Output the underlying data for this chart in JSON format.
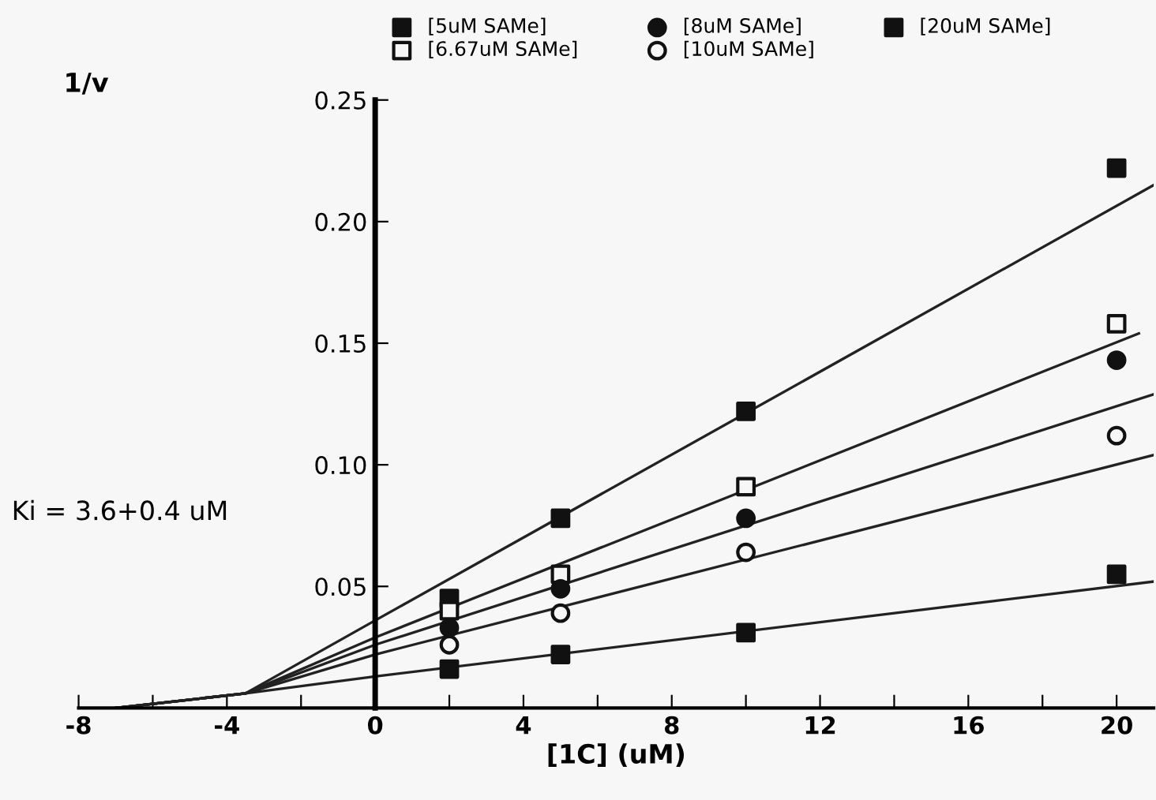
{
  "chart_data": {
    "type": "scatter",
    "xlabel": "[1C] (uM)",
    "ylabel": "1/v",
    "x": [
      2,
      5,
      10,
      20
    ],
    "series": [
      {
        "name": "[5uM SAMe]",
        "color": "#111111",
        "marker": "square",
        "values": [
          0.045,
          0.078,
          0.122,
          0.222
        ]
      },
      {
        "name": "[6.67uM SAMe]",
        "color": "#f7f7f7",
        "marker": "square",
        "values": [
          0.04,
          0.055,
          0.091,
          0.158
        ]
      },
      {
        "name": "[8uM SAMe]",
        "color": "#111111",
        "marker": "circle",
        "values": [
          0.033,
          0.049,
          0.078,
          0.143
        ]
      },
      {
        "name": "[10uM SAMe]",
        "color": "#f7f7f7",
        "marker": "circle",
        "values": [
          0.026,
          0.039,
          0.064,
          0.112
        ]
      },
      {
        "name": "[20uM SAMe]",
        "color": "#111111",
        "marker": "square",
        "values": [
          0.016,
          0.022,
          0.031,
          0.055
        ]
      },
      {
        "type": "line",
        "color": "#222222",
        "x": [
          -7,
          -3.5,
          0,
          21
        ],
        "values": [
          0,
          0.006,
          0.036,
          0.215
        ]
      },
      {
        "type": "line",
        "color": "#222222",
        "x": [
          -7,
          -3.5,
          0,
          20.6
        ],
        "values": [
          0,
          0.006,
          0.029,
          0.154
        ]
      },
      {
        "type": "line",
        "color": "#222222",
        "x": [
          -7,
          -3.5,
          0,
          21
        ],
        "values": [
          0,
          0.006,
          0.026,
          0.129
        ]
      },
      {
        "type": "line",
        "color": "#222222",
        "x": [
          -7,
          -3.5,
          0,
          21
        ],
        "values": [
          0,
          0.006,
          0.022,
          0.104
        ]
      },
      {
        "type": "line",
        "color": "#222222",
        "x": [
          -7,
          -3.5,
          0,
          21
        ],
        "values": [
          0,
          0.006,
          0.013,
          0.052
        ]
      }
    ],
    "xlim": [
      -8,
      21
    ],
    "ylim": [
      0,
      0.25
    ],
    "xticks": [
      -8,
      {
        "value": -6,
        "label": null
      },
      -4,
      {
        "value": -2,
        "label": null
      },
      0,
      {
        "value": 2,
        "label": null
      },
      4,
      {
        "value": 6,
        "label": null
      },
      8,
      {
        "value": 10,
        "label": null
      },
      12,
      {
        "value": 14,
        "label": null
      },
      16,
      {
        "value": 18,
        "label": null
      },
      20
    ],
    "yticks": [
      {
        "value": 0.05,
        "label": "0.05"
      },
      {
        "value": 0.1,
        "label": "0.10"
      },
      {
        "value": 0.15,
        "label": "0.15"
      },
      {
        "value": 0.2,
        "label": "0.20"
      },
      {
        "value": 0.25,
        "label": "0.25"
      }
    ],
    "annotations": [
      "Ki = 3.6+0.4 uM"
    ],
    "legend": "top",
    "grid": false
  }
}
